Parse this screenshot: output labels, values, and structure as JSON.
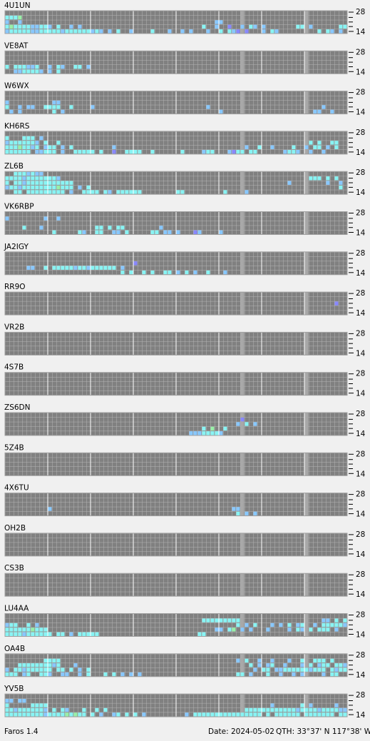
{
  "axis": {
    "top": 28,
    "bottom": 14
  },
  "cell_colors": {
    "c": "#88f4f4",
    "g": "#98f0a8",
    "b": "#8888ff",
    "l": "#88c8ff"
  },
  "stations": [
    {
      "name": "4U1UN",
      "rows": [
        "",
        "cccg",
        "l..l.............................................ll",
        "cgccccllccl.c..l.l............................c..l..b..l.cl.l.......cc.l......ccc.l",
        "lcccccllccccclcccccclcl.l.c..l....c...l..l.l...l..c.clb.b...l.cl.........c.cl.l..c"
      ]
    },
    {
      "name": "VE8AT",
      "rows": [
        "",
        "",
        "",
        "c.cccllc..l.cl..cc.l",
        "..llccccl.l.c"
      ]
    },
    {
      "name": "W6WX",
      "rows": [
        "",
        "",
        "l..........ll",
        "c..l.ll..cccc..c....l..........................l..........................l",
        ".l.l.......c.l....................................l.....................ll..l"
      ]
    },
    {
      "name": "KH6RS",
      "rows": [
        "",
        "c...ccc.l",
        "lccccccl.c..c..........................................................c.c..cc..cc.c...c",
        "cccgcclc.lcc.l.c.........l..............................l..c..l....c..l.cc.l.c..ccl",
        "cccccc.llccc.l..ccccc.c..b..cccc..c......c....lcc...lbcc.cc......lccl..l..l"
      ]
    },
    {
      "name": "ZL6B",
      "rows": [
        "..ccclcll",
        "cccclcccccccl..........................................................ccc.c.c",
        "c.cclccccccccccc..................................................l........l..l",
        "lcclccccccccgccc.l.c..........................................................c",
        "..cc.ccccccccc.l..cccc.cl.cccccc........cc.........c....l"
      ]
    },
    {
      "name": "VK6RBP",
      "rows": [
        "",
        "l........l..l",
        "",
        "....c...l............cc.c.cc........l",
        "...........c.....cl..cc..ll.c.....cc.ll.l...bl....l"
      ]
    },
    {
      "name": "JA2IGY",
      "rows": [
        "",
        "",
        "..............................b",
        ".....ll..c.ccccclcclcccccc.l",
        "...........................c.c..c.c..cc.l.c.l..c...l"
      ]
    },
    {
      "name": "RR9O",
      "rows": [
        "",
        "",
        ".............................................................................b"
      ]
    },
    {
      "name": "VR2B",
      "rows": []
    },
    {
      "name": "4S7B",
      "rows": []
    },
    {
      "name": "ZS6DN",
      "rows": [
        "",
        ".......................................................b",
        "......................................................l.c.l",
        "..............................................c.g..c",
        "...........................................lllccccl"
      ]
    },
    {
      "name": "5Z4B",
      "rows": []
    },
    {
      "name": "4X6TU",
      "rows": [
        "",
        "",
        "",
        "..........l..........................................ll",
        "......................................................c.l.l"
      ]
    },
    {
      "name": "OH2B",
      "rows": []
    },
    {
      "name": "CS3B",
      "rows": []
    },
    {
      "name": "LU4AA",
      "rows": [
        "",
        "..............................................ccccccccc...................ll.c.c.c",
        "lcc..c.l..............................................c.l.c...l.l.c.lc..l.cccccl",
        "ccccccgccc.......................................ll.cg.l.l...l....l.cl.c.ccc.l",
        "cccclcccccc.cc.l.ccccc.......................cc"
      ]
    },
    {
      "name": "OA4B",
      "rows": [
        "",
        ".........cccc.........................................l.c..l..l...l..c..ccc.c",
        "...cccccccclc...l........................................c.l.lc..l...l.c.lcc.ccl",
        "l.cclcccccc.cc.c.l.c......................................l.cc.llcccccclccc.clcc",
        "ccc.lc..ccl..ll..l.c...c.c.l.l.l......................cc.l...c..l..l.l....l.cc"
      ]
    },
    {
      "name": "YV5B",
      "rows": [
        "",
        "ll.ll",
        "c.....cccc....................................................l......c.l.....l",
        "cclccccccl.c.cl...c..c.c................................cccccccccccclcccclccccll",
        "ccccccccclccccgcgcc.c.l..lc.c.c.l.........l.cccccccccccccccc.c.cccccc.ccccccc.cc"
      ]
    }
  ],
  "footer": {
    "app": "Faros 1.4",
    "date": "Date: 2024-05-02",
    "qth": "QTH: 33°37' N  117°38' W"
  }
}
